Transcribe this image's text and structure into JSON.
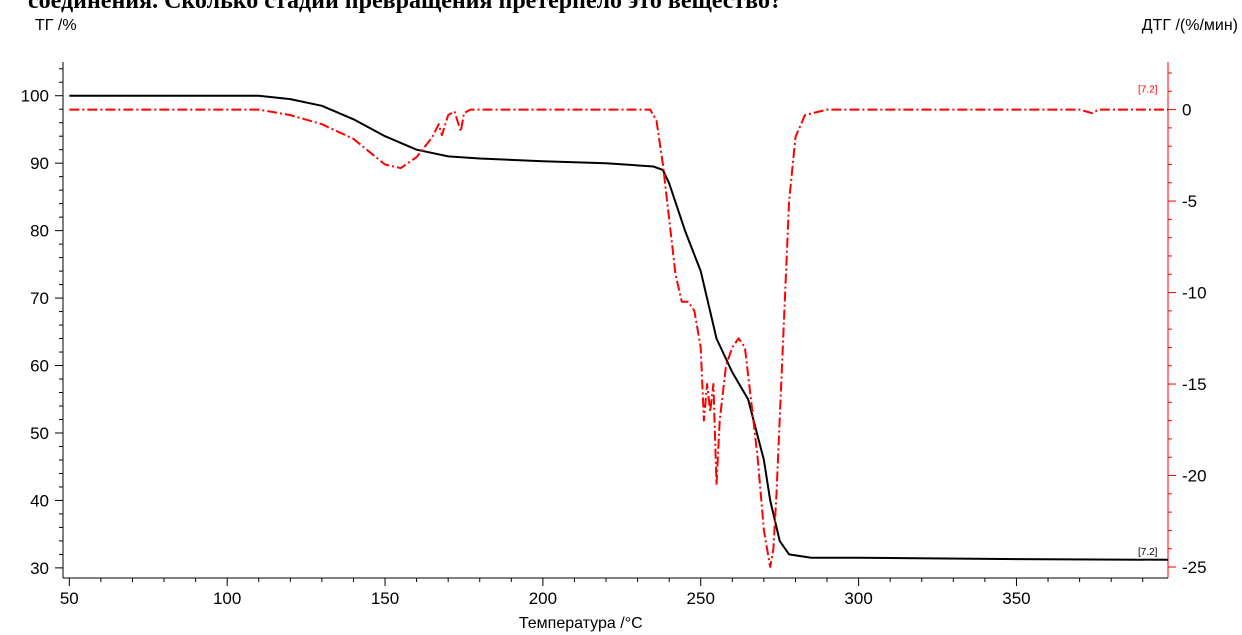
{
  "header_text": "соединения. Сколько стадий превращения претерпело это вещество?",
  "chart_data": {
    "type": "line",
    "xlabel": "Температура /°C",
    "ylabel_left": "ТГ /%",
    "ylabel_right": "ДТГ /(%/мин)",
    "xlim": [
      48,
      398
    ],
    "ylim_left": [
      28.5,
      105
    ],
    "ylim_right": [
      -25.6,
      2.6
    ],
    "x_ticks": [
      50,
      100,
      150,
      200,
      250,
      300,
      350
    ],
    "y_left_ticks": [
      30,
      40,
      50,
      60,
      70,
      80,
      90,
      100
    ],
    "y_right_ticks": [
      0,
      -5,
      -10,
      -15,
      -20,
      -25
    ],
    "grid": false,
    "legend": "none",
    "colors": {
      "tg": "#000000",
      "dtg": "#ff0000"
    },
    "series": [
      {
        "axis": "left",
        "style": "solid",
        "color": "#000000",
        "end_tag": "[7.2]",
        "points": [
          [
            50,
            100
          ],
          [
            100,
            100
          ],
          [
            110,
            100
          ],
          [
            120,
            99.5
          ],
          [
            130,
            98.5
          ],
          [
            140,
            96.5
          ],
          [
            150,
            94
          ],
          [
            160,
            92
          ],
          [
            170,
            91
          ],
          [
            180,
            90.7
          ],
          [
            200,
            90.3
          ],
          [
            220,
            90
          ],
          [
            235,
            89.5
          ],
          [
            238,
            89
          ],
          [
            240,
            87
          ],
          [
            245,
            80
          ],
          [
            250,
            74
          ],
          [
            255,
            64
          ],
          [
            260,
            59
          ],
          [
            265,
            55
          ],
          [
            270,
            46
          ],
          [
            272,
            40
          ],
          [
            275,
            34
          ],
          [
            278,
            32
          ],
          [
            285,
            31.5
          ],
          [
            300,
            31.5
          ],
          [
            350,
            31.3
          ],
          [
            398,
            31.2
          ]
        ]
      },
      {
        "axis": "right",
        "style": "dashdot",
        "color": "#ff0000",
        "end_tag": "[7.2]",
        "points": [
          [
            50,
            0
          ],
          [
            90,
            0
          ],
          [
            110,
            0
          ],
          [
            120,
            -0.3
          ],
          [
            130,
            -0.8
          ],
          [
            140,
            -1.6
          ],
          [
            145,
            -2.3
          ],
          [
            150,
            -3
          ],
          [
            155,
            -3.2
          ],
          [
            160,
            -2.6
          ],
          [
            165,
            -1.5
          ],
          [
            167,
            -0.8
          ],
          [
            168,
            -1.4
          ],
          [
            170,
            -0.3
          ],
          [
            172,
            -0.1
          ],
          [
            174,
            -1.2
          ],
          [
            175,
            -0.2
          ],
          [
            177,
            0
          ],
          [
            200,
            0
          ],
          [
            220,
            0
          ],
          [
            234,
            0
          ],
          [
            236,
            -0.6
          ],
          [
            238,
            -3
          ],
          [
            240,
            -6
          ],
          [
            242,
            -9
          ],
          [
            244,
            -10.5
          ],
          [
            246,
            -10.5
          ],
          [
            248,
            -11
          ],
          [
            250,
            -13
          ],
          [
            251,
            -17
          ],
          [
            252,
            -15
          ],
          [
            253,
            -16.5
          ],
          [
            254,
            -15
          ],
          [
            255,
            -20.5
          ],
          [
            256,
            -17
          ],
          [
            258,
            -14
          ],
          [
            260,
            -13
          ],
          [
            262,
            -12.5
          ],
          [
            264,
            -13
          ],
          [
            266,
            -16
          ],
          [
            268,
            -19
          ],
          [
            270,
            -23
          ],
          [
            272,
            -25
          ],
          [
            273,
            -24
          ],
          [
            274,
            -21
          ],
          [
            276,
            -13
          ],
          [
            278,
            -5
          ],
          [
            280,
            -1.5
          ],
          [
            283,
            -0.3
          ],
          [
            290,
            0
          ],
          [
            320,
            0
          ],
          [
            340,
            0
          ],
          [
            360,
            0
          ],
          [
            370,
            0
          ],
          [
            374,
            -0.2
          ],
          [
            376,
            0
          ],
          [
            398,
            0
          ]
        ]
      }
    ],
    "end_labels": [
      "[7.2]",
      "[7.2]"
    ]
  }
}
